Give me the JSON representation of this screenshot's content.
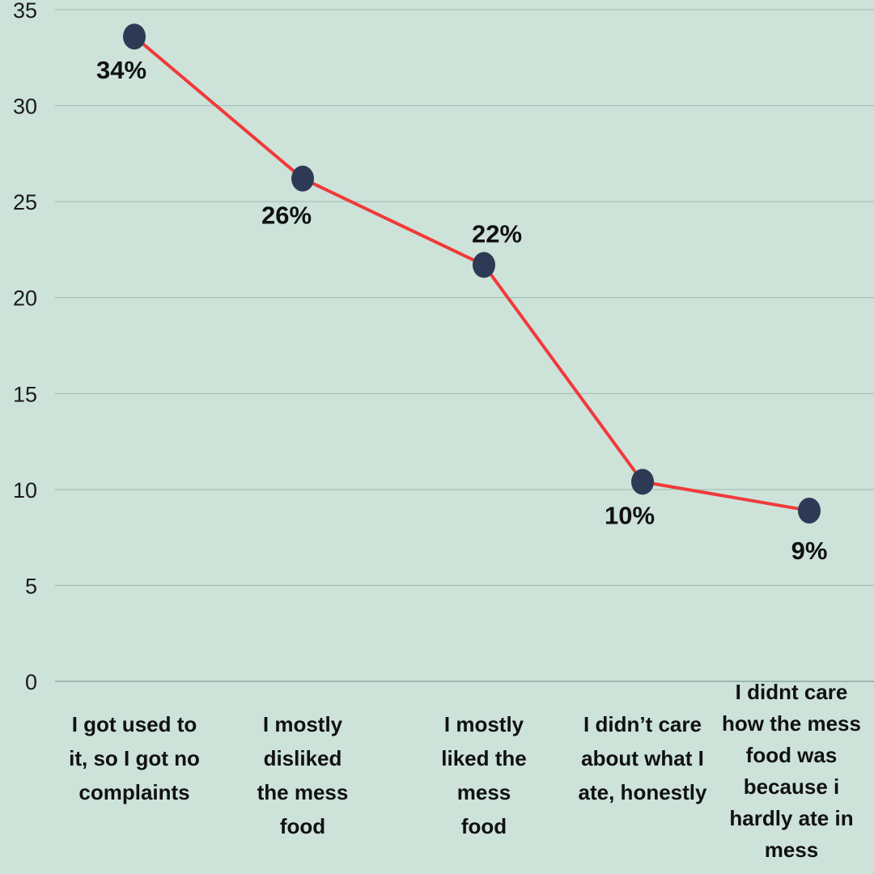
{
  "chart_data": {
    "type": "line",
    "categories": [
      "I got used to\nit, so I got no\ncomplaints",
      "I mostly\ndisliked\nthe mess\nfood",
      "I mostly\nliked the\nmess\nfood",
      "I didn’t care\nabout what I\nate, honestly",
      "I didnt care\nhow the mess\nfood was\nbecause  i\nhardly ate in\nmess"
    ],
    "values": [
      33.6,
      26.2,
      21.7,
      10.4,
      8.9
    ],
    "data_labels": [
      "34%",
      "26%",
      "22%",
      "10%",
      "9%"
    ],
    "ylim": [
      0,
      35
    ],
    "yticks": [
      "0",
      "5",
      "10",
      "15",
      "20",
      "25",
      "30",
      "35"
    ],
    "grid": true,
    "colors": {
      "background": "#cde3da",
      "line": "#f03a3a",
      "marker": "#2e3a55",
      "grid": "#9fb8ae"
    }
  }
}
